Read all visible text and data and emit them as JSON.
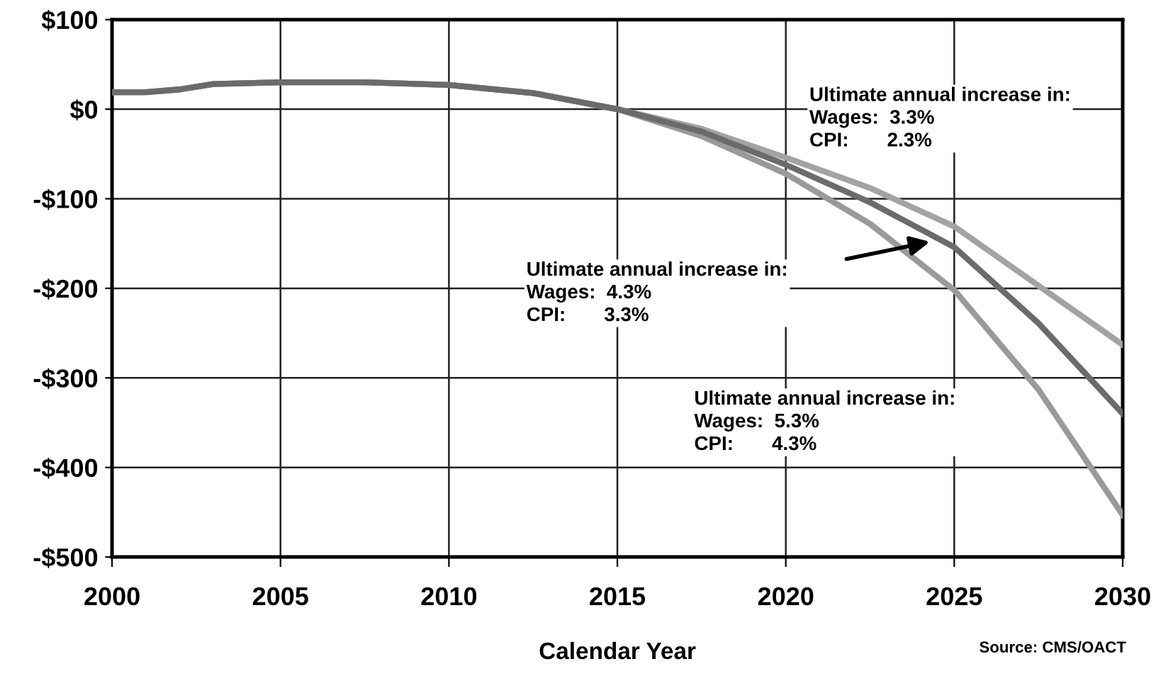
{
  "chart_data": {
    "type": "line",
    "xlabel": "Calendar Year",
    "x": [
      2000,
      2001,
      2002,
      2003,
      2005,
      2007.5,
      2010,
      2012.5,
      2015,
      2017.5,
      2020,
      2022.5,
      2025,
      2027.5,
      2030
    ],
    "series": [
      {
        "color": "#a3a3a3",
        "values": [
          19,
          19,
          22,
          28,
          30,
          30,
          27,
          18,
          0,
          -22,
          -54,
          -88,
          -131,
          -197,
          -263
        ]
      },
      {
        "color": "#6b6b6b",
        "values": [
          19,
          19,
          22,
          28,
          30,
          30,
          27,
          18,
          0,
          -25,
          -62,
          -104,
          -154,
          -239,
          -340
        ]
      },
      {
        "color": "#9a9a9a",
        "values": [
          19,
          19,
          22,
          28,
          30,
          30,
          27,
          18,
          0,
          -30,
          -72,
          -128,
          -202,
          -313,
          -453
        ]
      }
    ],
    "xlim": [
      2000,
      2030
    ],
    "xticks": [
      2000,
      2005,
      2010,
      2015,
      2020,
      2025,
      2030
    ],
    "ylim": [
      -500,
      100
    ],
    "yticks": [
      {
        "value": 100,
        "label": "$100"
      },
      {
        "value": 0,
        "label": "$0"
      },
      {
        "value": -100,
        "label": "-$100"
      },
      {
        "value": -200,
        "label": "-$200"
      },
      {
        "value": -300,
        "label": "-$300"
      },
      {
        "value": -400,
        "label": "-$400"
      },
      {
        "value": -500,
        "label": "-$500"
      }
    ],
    "grid": true,
    "legend": false,
    "marker": "none",
    "line_style": "solid",
    "annotations": [
      "Ultimate annual increase in:\nWages:  3.3%\nCPI:       2.3%",
      "Ultimate annual increase in:\nWages:  4.3%\nCPI:       3.3%",
      "Ultimate annual increase in:\nWages:  5.3%\nCPI:       4.3%",
      "Source: CMS/OACT"
    ]
  }
}
